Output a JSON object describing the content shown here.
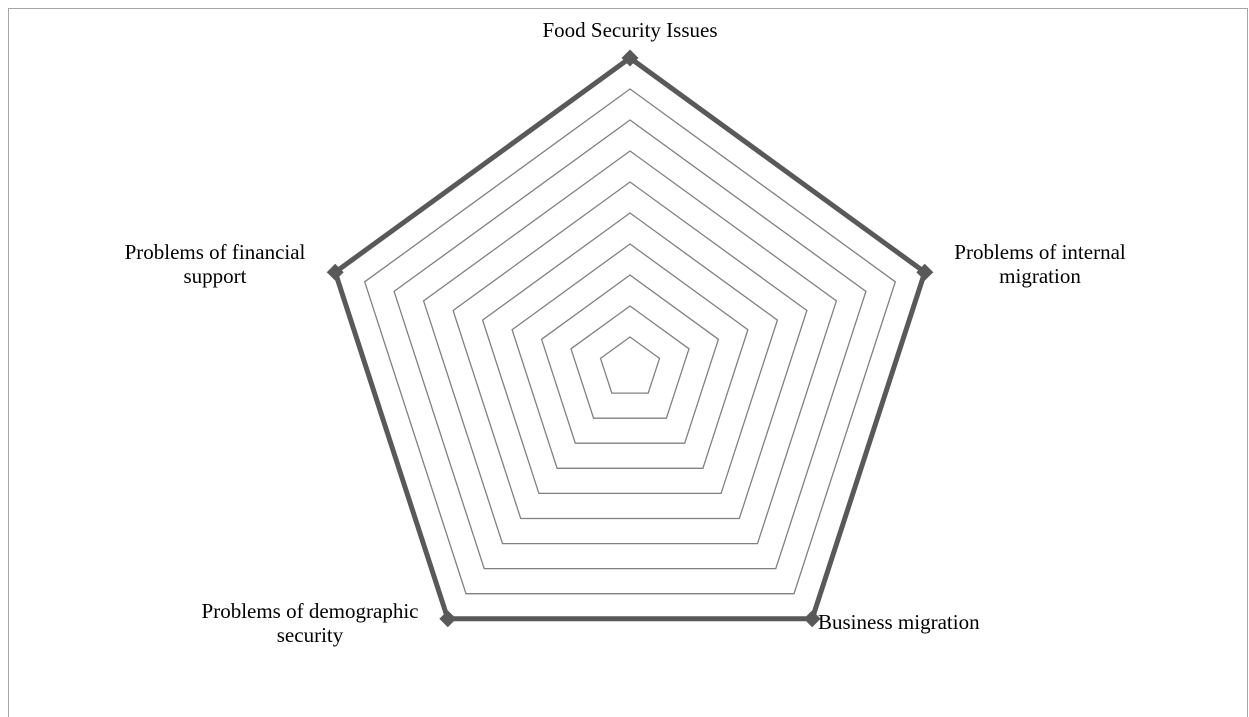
{
  "chart_data": {
    "type": "radar",
    "categories": [
      "Food Security Issues",
      "Problems of internal migration",
      "Business migration",
      "Problems of demographic security",
      "Problems of financial support"
    ],
    "label_lines": [
      [
        "Food Security Issues"
      ],
      [
        "Problems of internal",
        "migration"
      ],
      [
        "Business migration"
      ],
      [
        "Problems of demographic",
        "security"
      ],
      [
        "Problems of financial",
        "support"
      ]
    ],
    "series": [
      {
        "values": [
          10,
          10,
          10,
          10,
          10
        ]
      }
    ],
    "rlim": [
      0,
      10
    ],
    "grid_rings": 10,
    "grid": true,
    "legend": "none",
    "colors": {
      "series": "#595959",
      "grid": "#808080",
      "frame": "#a6a6a6"
    }
  }
}
